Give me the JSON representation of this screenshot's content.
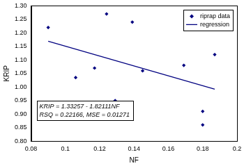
{
  "chart_data": {
    "type": "scatter",
    "x_label": "NF",
    "y_label": "KRIP",
    "series": [
      {
        "name": "riprap data",
        "type": "scatter",
        "color": "#000080",
        "marker": "diamond",
        "x": [
          0.09,
          0.106,
          0.117,
          0.124,
          0.129,
          0.139,
          0.145,
          0.169,
          0.18,
          0.18,
          0.187
        ],
        "values": [
          1.22,
          1.035,
          1.07,
          1.27,
          0.95,
          1.24,
          1.06,
          1.08,
          0.91,
          0.86,
          1.12
        ]
      },
      {
        "name": "regression",
        "type": "line",
        "color": "#000080",
        "line_style": "solid",
        "x": [
          0.09,
          0.187
        ],
        "values": [
          1.169,
          0.992
        ]
      }
    ],
    "annotations": [
      "KRIP = 1.33257 - 1.82111NF",
      "RSQ = 0.22166, MSE = 0.01271"
    ],
    "xlim": [
      0.08,
      0.2
    ],
    "xticks": [
      0.08,
      0.1,
      0.12,
      0.14,
      0.16,
      0.18,
      0.2
    ],
    "ylim": [
      0.8,
      1.3
    ],
    "yticks": [
      {
        "value": 0.8,
        "label": "0.80"
      },
      0.85,
      {
        "value": 0.9,
        "label": "0.90"
      },
      0.95,
      {
        "value": 1.0,
        "label": "1.00"
      },
      1.05,
      {
        "value": 1.1,
        "label": "1.10"
      },
      1.15,
      {
        "value": 1.2,
        "label": "1.20"
      },
      1.25,
      {
        "value": 1.3,
        "label": "1.30"
      }
    ],
    "grid": false,
    "legend": "upper right"
  }
}
